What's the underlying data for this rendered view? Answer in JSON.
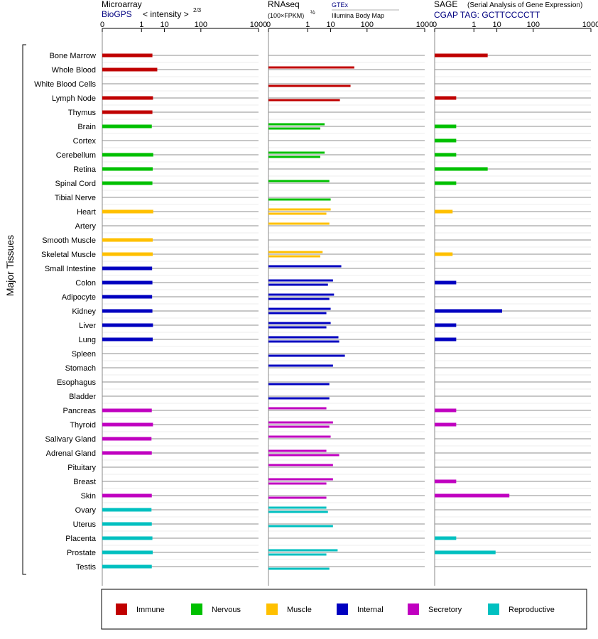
{
  "colors": {
    "Immune": "#c00000",
    "Nervous": "#00c000",
    "Muscle": "#ffc000",
    "Internal": "#0000c0",
    "Secretory": "#c000c0",
    "Reproductive": "#00c0c0",
    "gridline": "#555555",
    "header_blue": "#000080"
  },
  "y_axis_title": "Major Tissues",
  "panels": {
    "microarray": {
      "title": "Microarray",
      "source": "BioGPS",
      "metric": "< intensity >",
      "exponent": "2/3"
    },
    "rnaseq": {
      "title": "RNAseq",
      "metric": "(100×FPKM)",
      "exponent": "½",
      "source_top": "GTEx",
      "source_bottom": "Illumina Body Map"
    },
    "sage": {
      "title": "SAGE",
      "subtitle": "(Serial Analysis of Gene Expression)",
      "tag": "CGAP TAG: GCTTCCCCTT"
    }
  },
  "legend": [
    {
      "name": "Immune",
      "color": "#c00000"
    },
    {
      "name": "Nervous",
      "color": "#00c000"
    },
    {
      "name": "Muscle",
      "color": "#ffc000"
    },
    {
      "name": "Internal",
      "color": "#0000c0"
    },
    {
      "name": "Secretory",
      "color": "#c000c0"
    },
    {
      "name": "Reproductive",
      "color": "#00c0c0"
    }
  ],
  "chart_data": {
    "type": "bar",
    "orientation": "horizontal",
    "x_scale": "power (tick labels 0, 1, 10, 100, 1000)",
    "x_ticks": [
      "0",
      "1",
      "10",
      "100",
      "1000"
    ],
    "xlim": [
      0,
      1000
    ],
    "categories": [
      "Bone Marrow",
      "Whole Blood",
      "White Blood Cells",
      "Lymph Node",
      "Thymus",
      "Brain",
      "Cortex",
      "Cerebellum",
      "Retina",
      "Spinal Cord",
      "Tibial Nerve",
      "Heart",
      "Artery",
      "Smooth Muscle",
      "Skeletal Muscle",
      "Small Intestine",
      "Colon",
      "Adipocyte",
      "Kidney",
      "Liver",
      "Lung",
      "Spleen",
      "Stomach",
      "Esophagus",
      "Bladder",
      "Pancreas",
      "Thyroid",
      "Salivary Gland",
      "Adrenal Gland",
      "Pituitary",
      "Breast",
      "Skin",
      "Ovary",
      "Uterus",
      "Placenta",
      "Prostate",
      "Testis"
    ],
    "groups": [
      "Immune",
      "Immune",
      "Immune",
      "Immune",
      "Immune",
      "Nervous",
      "Nervous",
      "Nervous",
      "Nervous",
      "Nervous",
      "Nervous",
      "Muscle",
      "Muscle",
      "Muscle",
      "Muscle",
      "Internal",
      "Internal",
      "Internal",
      "Internal",
      "Internal",
      "Internal",
      "Internal",
      "Internal",
      "Internal",
      "Internal",
      "Secretory",
      "Secretory",
      "Secretory",
      "Secretory",
      "Secretory",
      "Secretory",
      "Secretory",
      "Reproductive",
      "Reproductive",
      "Reproductive",
      "Reproductive",
      "Reproductive"
    ],
    "series": [
      {
        "name": "Microarray",
        "values": [
          3.4,
          5.4,
          null,
          3.6,
          3.4,
          3.2,
          null,
          3.7,
          3.5,
          3.4,
          null,
          3.7,
          null,
          3.5,
          3.5,
          3.3,
          3.4,
          3.3,
          3.4,
          3.6,
          3.5,
          null,
          null,
          null,
          null,
          3.2,
          3.6,
          3.1,
          3.2,
          null,
          null,
          3.2,
          3.1,
          3.2,
          3.4,
          3.5,
          3.2
        ]
      },
      {
        "name": "GTEx",
        "values": [
          null,
          50,
          null,
          null,
          null,
          6,
          null,
          6,
          null,
          9,
          null,
          10,
          9,
          null,
          5,
          22,
          12,
          13,
          10,
          10,
          18,
          null,
          12,
          null,
          null,
          7,
          12,
          10,
          7,
          12,
          12,
          null,
          7,
          null,
          null,
          17,
          null
        ],
        "comment_none": ""
      },
      {
        "name": "Illumina Body Map",
        "values": [
          null,
          null,
          40,
          20,
          null,
          4,
          null,
          4,
          null,
          null,
          10,
          7,
          null,
          null,
          4,
          null,
          8,
          9,
          7,
          7,
          19,
          28,
          null,
          9,
          9,
          null,
          9,
          null,
          19,
          null,
          7,
          7,
          8,
          12,
          null,
          7,
          9
        ]
      },
      {
        "name": "SAGE",
        "values": [
          4.5,
          null,
          null,
          0.05,
          null,
          0.05,
          0.05,
          0.05,
          4.5,
          0.05,
          null,
          0.02,
          null,
          null,
          0.02,
          null,
          0.05,
          null,
          15,
          0.05,
          0.05,
          null,
          null,
          null,
          null,
          0.05,
          0.05,
          null,
          null,
          null,
          0.05,
          25,
          null,
          null,
          0.05,
          9,
          null
        ]
      }
    ]
  }
}
